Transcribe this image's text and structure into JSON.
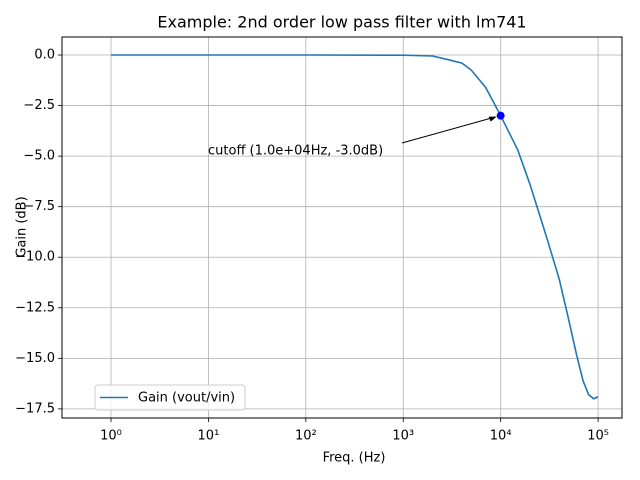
{
  "chart_data": {
    "type": "line",
    "title": "Example: 2nd order low pass filter with lm741",
    "x_label": "Freq. (Hz)",
    "y_label": "Gain (dB)",
    "log_x": true,
    "grid": true,
    "legend_position": "lower left",
    "x": [
      1,
      10,
      100,
      1000,
      2000,
      3000,
      4000,
      5000,
      7000,
      10000,
      15000,
      20000,
      30000,
      40000,
      50000,
      60000,
      70000,
      80000,
      90000,
      100000
    ],
    "series": [
      {
        "name": "Gain (vout/vin)",
        "color": "#1f77b4",
        "values": [
          0,
          0,
          0,
          -0.01,
          -0.05,
          -0.25,
          -0.4,
          -0.75,
          -1.6,
          -3.0,
          -4.7,
          -6.4,
          -9.1,
          -11.1,
          -13.1,
          -14.8,
          -16.1,
          -16.8,
          -17.0,
          -16.9
        ]
      }
    ],
    "annotation": {
      "text": "cutoff (1.0e+04Hz, -3.0dB)",
      "x": 10000,
      "y": -3.0,
      "color": "blue"
    },
    "xlim": [
      0.314,
      176000
    ],
    "ylim": [
      -17.95,
      0.89
    ],
    "xticks": [
      {
        "value": 1,
        "label": "10⁰"
      },
      {
        "value": 10,
        "label": "10¹"
      },
      {
        "value": 100,
        "label": "10²"
      },
      {
        "value": 1000,
        "label": "10³"
      },
      {
        "value": 10000,
        "label": "10⁴"
      },
      {
        "value": 100000,
        "label": "10⁵"
      }
    ],
    "yticks": [
      {
        "value": 0,
        "label": "0.0"
      },
      {
        "value": -2.5,
        "label": "−2.5"
      },
      {
        "value": -5,
        "label": "−5.0"
      },
      {
        "value": -7.5,
        "label": "−7.5"
      },
      {
        "value": -10,
        "label": "−10.0"
      },
      {
        "value": -12.5,
        "label": "−12.5"
      },
      {
        "value": -15,
        "label": "−15.0"
      },
      {
        "value": -17.5,
        "label": "−17.5"
      }
    ]
  }
}
